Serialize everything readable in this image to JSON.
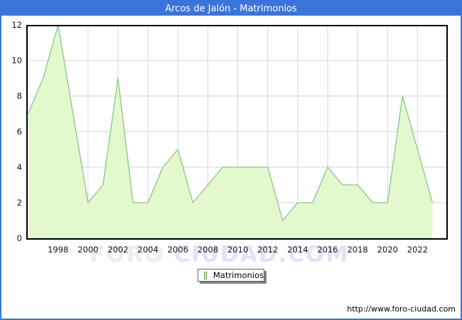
{
  "window": {
    "title": "Arcos de Jalón - Matrimonios"
  },
  "chart_data": {
    "type": "area",
    "title": "Arcos de Jalón - Matrimonios",
    "xlabel": "",
    "ylabel": "",
    "x": [
      1996,
      1997,
      1998,
      1999,
      2000,
      2001,
      2002,
      2003,
      2004,
      2005,
      2006,
      2007,
      2008,
      2009,
      2010,
      2011,
      2012,
      2013,
      2014,
      2015,
      2016,
      2017,
      2018,
      2019,
      2020,
      2021,
      2022,
      2023
    ],
    "series": [
      {
        "name": "Matrimonios",
        "values": [
          7,
          9,
          12,
          7,
          2,
          3,
          9,
          2,
          2,
          4,
          5,
          2,
          3,
          4,
          4,
          4,
          4,
          1,
          2,
          2,
          4,
          3,
          3,
          2,
          2,
          8,
          5,
          2
        ]
      }
    ],
    "ylim": [
      0,
      12
    ],
    "yticks": [
      0,
      2,
      4,
      6,
      8,
      10,
      12
    ],
    "xticks": [
      1998,
      2000,
      2002,
      2004,
      2006,
      2008,
      2010,
      2012,
      2014,
      2016,
      2018,
      2020,
      2022
    ],
    "grid": true,
    "legend_position": "bottom-center",
    "colors": {
      "header_bg": "#3a74da",
      "frame_border": "#3a74da",
      "area_fill": "#e4f8cd",
      "area_stroke": "#85c785",
      "grid_line": "#d6d6d6",
      "plot_border": "#000000"
    }
  },
  "legend": {
    "label": "Matrimonios",
    "swatch_fill": "#c9f0a4",
    "swatch_border": "#7fa968"
  },
  "watermark": {
    "part1": "FORO ",
    "part2": "CIUDAD.COM"
  },
  "footer": {
    "url": "http://www.foro-ciudad.com"
  }
}
